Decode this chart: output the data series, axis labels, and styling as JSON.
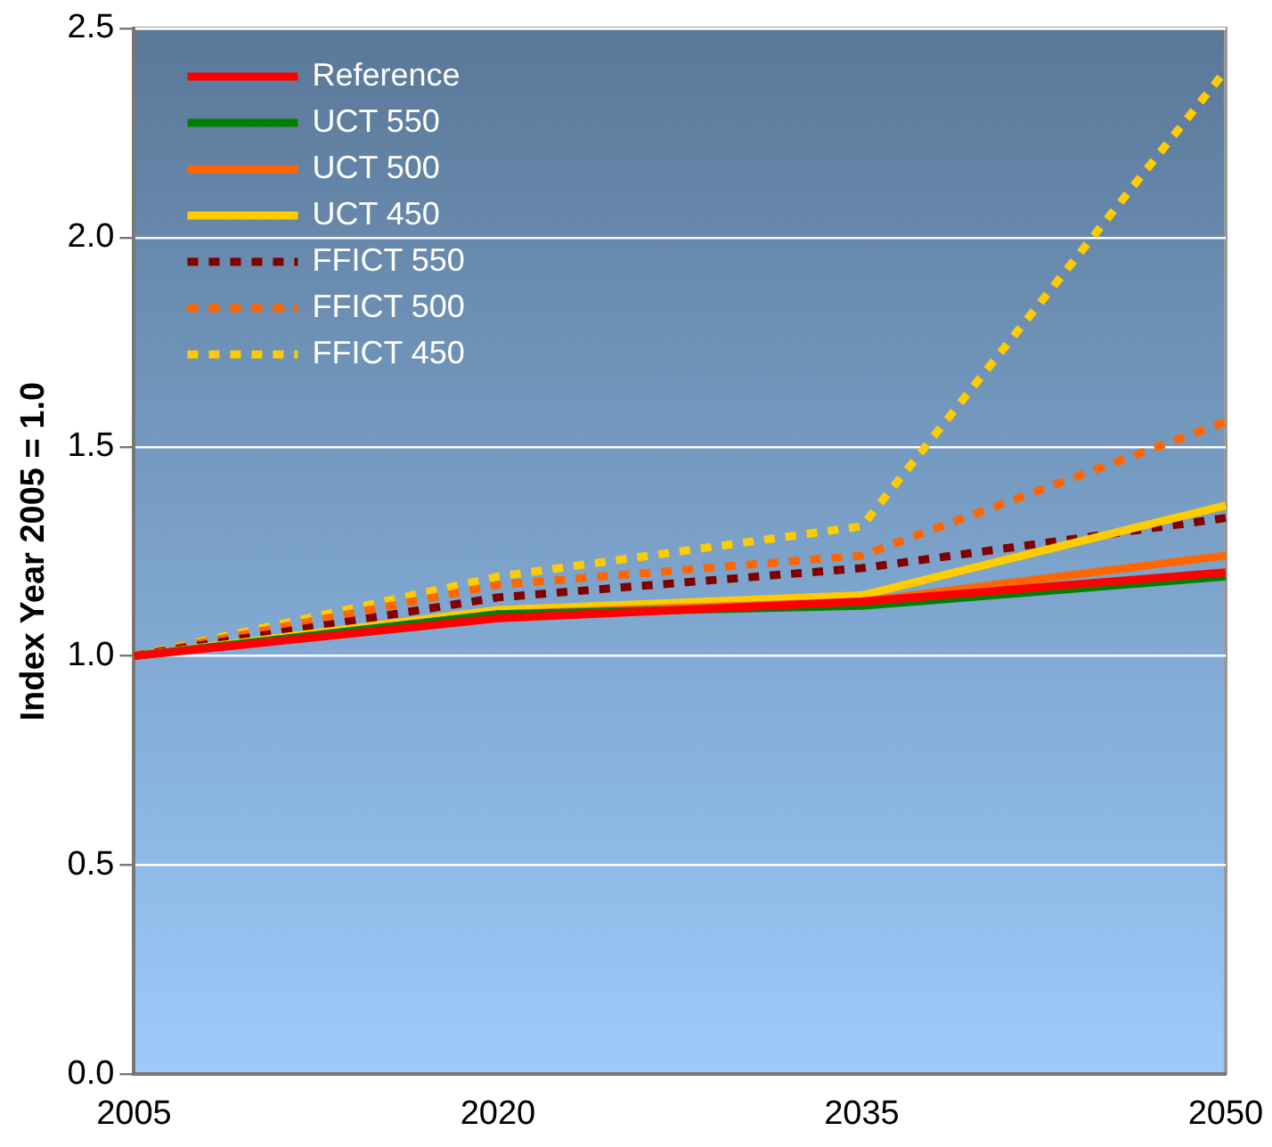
{
  "chart_data": {
    "type": "line",
    "ylabel": "Index Year 2005 = 1.0",
    "x": [
      2005,
      2020,
      2035,
      2050
    ],
    "xlim": [
      2005,
      2050
    ],
    "xticks": [
      2005,
      2020,
      2035,
      2050
    ],
    "ylim": [
      0,
      2.5
    ],
    "yticks": [
      {
        "value": 0,
        "label": "0.0"
      },
      {
        "value": 0.5,
        "label": "0.5"
      },
      {
        "value": 1,
        "label": "1.0"
      },
      {
        "value": 1.5,
        "label": "1.5"
      },
      {
        "value": 2,
        "label": "2.0"
      },
      {
        "value": 2.5,
        "label": "2.5"
      }
    ],
    "grid": "y",
    "legend": "top left",
    "marker": "none",
    "series": [
      {
        "name": "Reference",
        "color": "#ff0000",
        "values": [
          1.0,
          1.09,
          1.13,
          1.2
        ],
        "line_style": "solid"
      },
      {
        "name": "UCT 550",
        "color": "#008000",
        "values": [
          1.0,
          1.1,
          1.12,
          1.19
        ],
        "line_style": "solid"
      },
      {
        "name": "UCT 500",
        "color": "#ff6600",
        "values": [
          1.0,
          1.1,
          1.13,
          1.24
        ],
        "line_style": "solid"
      },
      {
        "name": "UCT 450",
        "color": "#ffcc00",
        "values": [
          1.0,
          1.11,
          1.145,
          1.36
        ],
        "line_style": "solid"
      },
      {
        "name": "FFICT 550",
        "color": "#800000",
        "values": [
          1.0,
          1.14,
          1.21,
          1.33
        ],
        "line_style": "dotted"
      },
      {
        "name": "FFICT 500",
        "color": "#ff6600",
        "values": [
          1.0,
          1.17,
          1.24,
          1.56
        ],
        "line_style": "dotted"
      },
      {
        "name": "FFICT 450",
        "color": "#ffcc00",
        "values": [
          1.0,
          1.19,
          1.31,
          2.4
        ],
        "line_style": "dotted"
      }
    ]
  }
}
